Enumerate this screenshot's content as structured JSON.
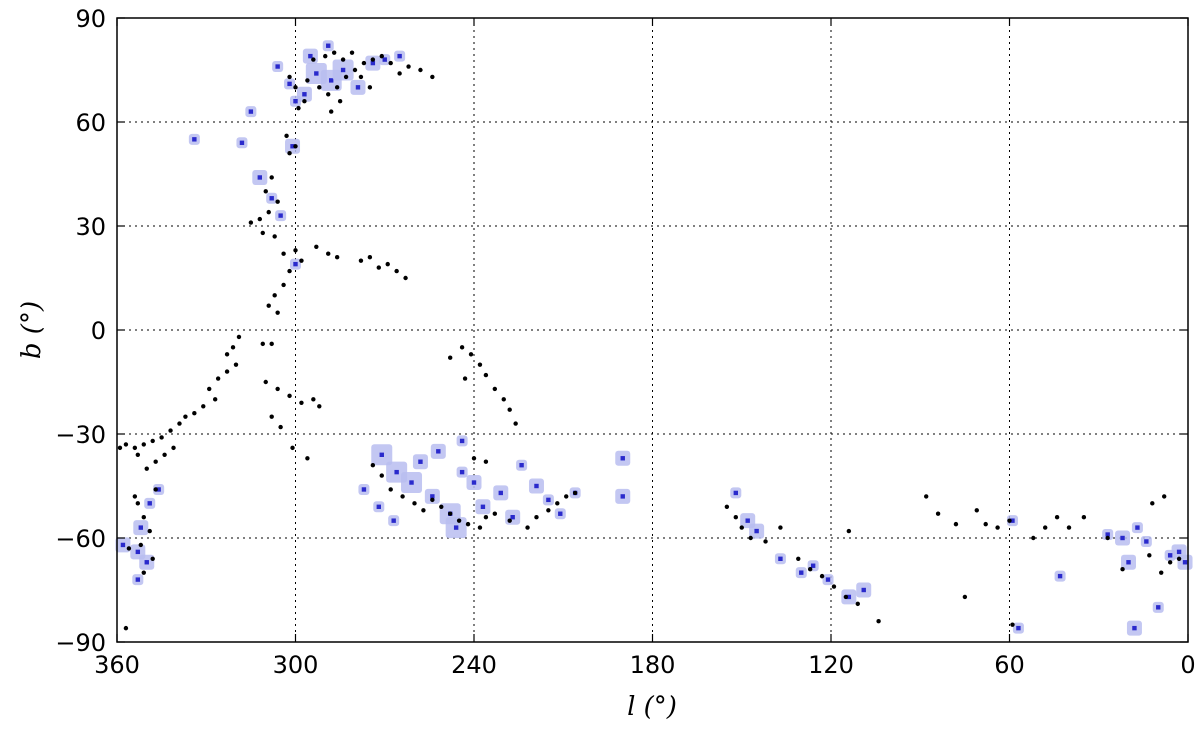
{
  "chart_data": {
    "type": "scatter",
    "title": "",
    "xlabel": "l (°)",
    "ylabel": "b (°)",
    "xlim": [
      360,
      0
    ],
    "ylim": [
      -90,
      90
    ],
    "x_reversed": true,
    "grid": true,
    "grid_style": "dotted",
    "xticks": [
      360,
      300,
      240,
      180,
      120,
      60,
      0
    ],
    "yticks": [
      90,
      60,
      30,
      0,
      -30,
      -60,
      -90
    ],
    "xtick_labels": [
      "360",
      "300",
      "240",
      "180",
      "120",
      "60",
      "0"
    ],
    "ytick_labels": [
      "90",
      "60",
      "30",
      "0",
      "−30",
      "−60",
      "−90"
    ],
    "colors": {
      "point": "#000000",
      "marker_fill": "#2a2acc",
      "marker_halo": "#b9bdf0"
    },
    "series": [
      {
        "marker": "black-dot",
        "points": [
          [
            299,
            64
          ],
          [
            297,
            66
          ],
          [
            300,
            70
          ],
          [
            302,
            73
          ],
          [
            296,
            72
          ],
          [
            292,
            70
          ],
          [
            289,
            68
          ],
          [
            286,
            70
          ],
          [
            283,
            73
          ],
          [
            280,
            75
          ],
          [
            277,
            77
          ],
          [
            274,
            78
          ],
          [
            271,
            79
          ],
          [
            268,
            77
          ],
          [
            265,
            74
          ],
          [
            262,
            76
          ],
          [
            258,
            75
          ],
          [
            254,
            73
          ],
          [
            294,
            78
          ],
          [
            290,
            79
          ],
          [
            287,
            80
          ],
          [
            284,
            78
          ],
          [
            281,
            80
          ],
          [
            278,
            73
          ],
          [
            275,
            70
          ],
          [
            285,
            66
          ],
          [
            288,
            63
          ],
          [
            303,
            56
          ],
          [
            300,
            53
          ],
          [
            302,
            51
          ],
          [
            308,
            44
          ],
          [
            310,
            40
          ],
          [
            306,
            37
          ],
          [
            309,
            34
          ],
          [
            312,
            32
          ],
          [
            315,
            31
          ],
          [
            311,
            28
          ],
          [
            307,
            27
          ],
          [
            304,
            22
          ],
          [
            300,
            23
          ],
          [
            298,
            20
          ],
          [
            302,
            17
          ],
          [
            304,
            13
          ],
          [
            307,
            10
          ],
          [
            309,
            7
          ],
          [
            306,
            5
          ],
          [
            293,
            24
          ],
          [
            289,
            22
          ],
          [
            286,
            21
          ],
          [
            278,
            20
          ],
          [
            275,
            21
          ],
          [
            272,
            18
          ],
          [
            269,
            19
          ],
          [
            266,
            17
          ],
          [
            263,
            15
          ],
          [
            319,
            -2
          ],
          [
            321,
            -5
          ],
          [
            323,
            -7
          ],
          [
            320,
            -10
          ],
          [
            323,
            -12
          ],
          [
            326,
            -14
          ],
          [
            329,
            -17
          ],
          [
            327,
            -20
          ],
          [
            331,
            -22
          ],
          [
            334,
            -24
          ],
          [
            337,
            -25
          ],
          [
            339,
            -27
          ],
          [
            342,
            -29
          ],
          [
            345,
            -31
          ],
          [
            348,
            -32
          ],
          [
            351,
            -33
          ],
          [
            354,
            -34
          ],
          [
            357,
            -33
          ],
          [
            359,
            -34
          ],
          [
            353,
            -36
          ],
          [
            350,
            -40
          ],
          [
            347,
            -38
          ],
          [
            344,
            -36
          ],
          [
            341,
            -34
          ],
          [
            353,
            -50
          ],
          [
            351,
            -54
          ],
          [
            349,
            -58
          ],
          [
            352,
            -62
          ],
          [
            356,
            -63
          ],
          [
            348,
            -66
          ],
          [
            351,
            -70
          ],
          [
            354,
            -48
          ],
          [
            347,
            -46
          ],
          [
            357,
            -86
          ],
          [
            310,
            -15
          ],
          [
            306,
            -17
          ],
          [
            302,
            -19
          ],
          [
            298,
            -21
          ],
          [
            294,
            -20
          ],
          [
            292,
            -22
          ],
          [
            308,
            -25
          ],
          [
            305,
            -28
          ],
          [
            301,
            -34
          ],
          [
            296,
            -37
          ],
          [
            311,
            -4
          ],
          [
            308,
            -4
          ],
          [
            244,
            -5
          ],
          [
            241,
            -7
          ],
          [
            238,
            -10
          ],
          [
            236,
            -13
          ],
          [
            233,
            -17
          ],
          [
            230,
            -20
          ],
          [
            228,
            -23
          ],
          [
            226,
            -27
          ],
          [
            243,
            -14
          ],
          [
            248,
            -8
          ],
          [
            264,
            -48
          ],
          [
            260,
            -50
          ],
          [
            257,
            -52
          ],
          [
            254,
            -49
          ],
          [
            251,
            -51
          ],
          [
            248,
            -53
          ],
          [
            245,
            -55
          ],
          [
            242,
            -56
          ],
          [
            238,
            -57
          ],
          [
            236,
            -54
          ],
          [
            233,
            -53
          ],
          [
            228,
            -55
          ],
          [
            222,
            -57
          ],
          [
            219,
            -54
          ],
          [
            215,
            -52
          ],
          [
            212,
            -50
          ],
          [
            209,
            -48
          ],
          [
            206,
            -47
          ],
          [
            268,
            -46
          ],
          [
            271,
            -42
          ],
          [
            274,
            -39
          ],
          [
            240,
            -37
          ],
          [
            236,
            -38
          ],
          [
            155,
            -51
          ],
          [
            152,
            -54
          ],
          [
            150,
            -57
          ],
          [
            147,
            -60
          ],
          [
            142,
            -61
          ],
          [
            137,
            -57
          ],
          [
            131,
            -66
          ],
          [
            127,
            -69
          ],
          [
            123,
            -71
          ],
          [
            119,
            -74
          ],
          [
            115,
            -77
          ],
          [
            111,
            -79
          ],
          [
            114,
            -58
          ],
          [
            104,
            -84
          ],
          [
            88,
            -48
          ],
          [
            84,
            -53
          ],
          [
            78,
            -56
          ],
          [
            71,
            -52
          ],
          [
            68,
            -56
          ],
          [
            64,
            -57
          ],
          [
            60,
            -55
          ],
          [
            52,
            -60
          ],
          [
            48,
            -57
          ],
          [
            44,
            -54
          ],
          [
            40,
            -57
          ],
          [
            35,
            -54
          ],
          [
            27,
            -60
          ],
          [
            22,
            -69
          ],
          [
            13,
            -65
          ],
          [
            9,
            -70
          ],
          [
            6,
            -67
          ],
          [
            3,
            -66
          ],
          [
            8,
            -48
          ],
          [
            12,
            -50
          ],
          [
            59,
            -85
          ],
          [
            75,
            -77
          ]
        ]
      },
      {
        "marker": "blue-square",
        "points": [
          [
            293,
            74,
            "l"
          ],
          [
            288,
            72,
            "l"
          ],
          [
            284,
            75,
            "l"
          ],
          [
            279,
            70,
            "m"
          ],
          [
            297,
            68,
            "m"
          ],
          [
            300,
            66,
            "s"
          ],
          [
            274,
            77,
            "m"
          ],
          [
            270,
            78,
            "s"
          ],
          [
            265,
            79,
            "s"
          ],
          [
            302,
            71,
            "s"
          ],
          [
            306,
            76,
            "s"
          ],
          [
            295,
            79,
            "m"
          ],
          [
            289,
            82,
            "s"
          ],
          [
            301,
            53,
            "m"
          ],
          [
            312,
            44,
            "m"
          ],
          [
            308,
            38,
            "s"
          ],
          [
            305,
            33,
            "s"
          ],
          [
            300,
            19,
            "s"
          ],
          [
            315,
            63,
            "s"
          ],
          [
            318,
            54,
            "s"
          ],
          [
            334,
            55,
            "s"
          ],
          [
            346,
            -46,
            "s"
          ],
          [
            352,
            -57,
            "m"
          ],
          [
            353,
            -64,
            "m"
          ],
          [
            350,
            -67,
            "m"
          ],
          [
            358,
            -62,
            "m"
          ],
          [
            353,
            -72,
            "s"
          ],
          [
            349,
            -50,
            "s"
          ],
          [
            271,
            -36,
            "l"
          ],
          [
            266,
            -41,
            "l"
          ],
          [
            261,
            -44,
            "l"
          ],
          [
            258,
            -38,
            "m"
          ],
          [
            254,
            -48,
            "m"
          ],
          [
            248,
            -53,
            "l"
          ],
          [
            246,
            -57,
            "l"
          ],
          [
            244,
            -41,
            "s"
          ],
          [
            240,
            -44,
            "m"
          ],
          [
            237,
            -51,
            "m"
          ],
          [
            231,
            -47,
            "m"
          ],
          [
            227,
            -54,
            "m"
          ],
          [
            224,
            -39,
            "s"
          ],
          [
            219,
            -45,
            "m"
          ],
          [
            215,
            -49,
            "s"
          ],
          [
            211,
            -53,
            "s"
          ],
          [
            206,
            -47,
            "s"
          ],
          [
            190,
            -37,
            "m"
          ],
          [
            190,
            -48,
            "m"
          ],
          [
            277,
            -46,
            "s"
          ],
          [
            272,
            -51,
            "s"
          ],
          [
            267,
            -55,
            "s"
          ],
          [
            252,
            -35,
            "m"
          ],
          [
            244,
            -32,
            "s"
          ],
          [
            148,
            -55,
            "m"
          ],
          [
            145,
            -58,
            "m"
          ],
          [
            152,
            -47,
            "s"
          ],
          [
            137,
            -66,
            "s"
          ],
          [
            130,
            -70,
            "s"
          ],
          [
            126,
            -68,
            "s"
          ],
          [
            121,
            -72,
            "s"
          ],
          [
            114,
            -77,
            "m"
          ],
          [
            109,
            -75,
            "m"
          ],
          [
            57,
            -86,
            "s"
          ],
          [
            22,
            -60,
            "m"
          ],
          [
            20,
            -67,
            "m"
          ],
          [
            18,
            -86,
            "m"
          ],
          [
            17,
            -57,
            "s"
          ],
          [
            14,
            -61,
            "s"
          ],
          [
            10,
            -80,
            "s"
          ],
          [
            3,
            -64,
            "m"
          ],
          [
            1,
            -67,
            "m"
          ],
          [
            6,
            -65,
            "s"
          ],
          [
            27,
            -59,
            "s"
          ],
          [
            43,
            -71,
            "s"
          ],
          [
            59,
            -55,
            "s"
          ]
        ]
      }
    ]
  }
}
